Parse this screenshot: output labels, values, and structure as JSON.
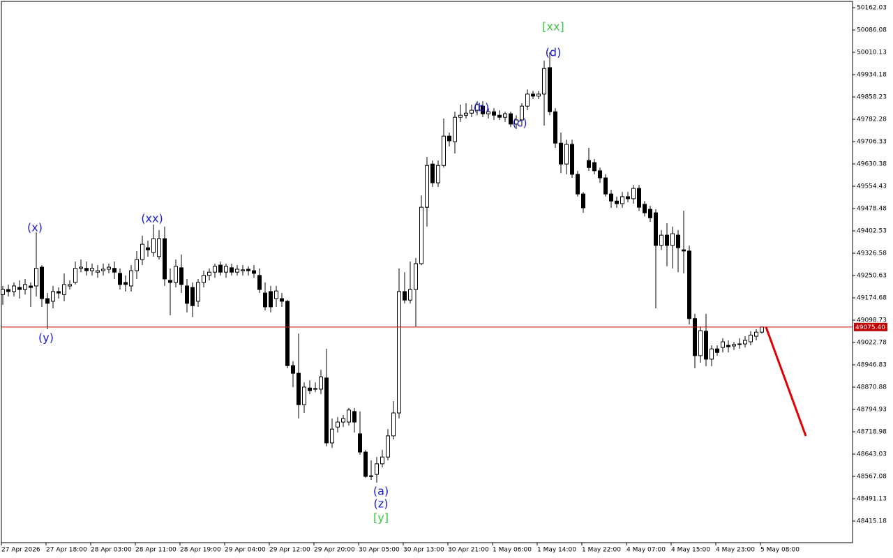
{
  "chart_data": {
    "type": "candlestick",
    "categories": [
      "27 Apr 2026",
      null,
      null,
      null,
      null,
      null,
      null,
      null,
      "27 Apr 18:00",
      null,
      null,
      null,
      null,
      null,
      null,
      null,
      "28 Apr 03:00",
      null,
      null,
      null,
      null,
      null,
      null,
      null,
      "28 Apr 11:00",
      null,
      null,
      null,
      null,
      null,
      null,
      null,
      "28 Apr 19:00",
      null,
      null,
      null,
      null,
      null,
      null,
      null,
      "29 Apr 04:00",
      null,
      null,
      null,
      null,
      null,
      null,
      null,
      "29 Apr 12:00",
      null,
      null,
      null,
      null,
      null,
      null,
      null,
      "29 Apr 20:00",
      null,
      null,
      null,
      null,
      null,
      null,
      null,
      "30 Apr 05:00",
      null,
      null,
      null,
      null,
      null,
      null,
      null,
      "30 Apr 13:00",
      null,
      null,
      null,
      null,
      null,
      null,
      null,
      "30 Apr 21:00",
      null,
      null,
      null,
      null,
      null,
      null,
      null,
      "1 May 06:00",
      null,
      null,
      null,
      null,
      null,
      null,
      null,
      "1 May 14:00",
      null,
      null,
      null,
      null,
      null,
      null,
      null,
      "1 May 22:00",
      null,
      null,
      null,
      null,
      null,
      null,
      null,
      "4 May 07:00",
      null,
      null,
      null,
      null,
      null,
      null,
      null,
      "4 May 15:00",
      null,
      null,
      null,
      null,
      null,
      null,
      null,
      "4 May 23:00",
      null,
      null,
      null,
      null,
      null,
      null,
      null,
      "5 May 08:00"
    ],
    "open": [
      49186,
      49203,
      49196,
      49210,
      49203,
      49215,
      49215,
      49279,
      49172,
      49163,
      49196,
      49186,
      49215,
      49227,
      49275,
      49275,
      49267,
      49262,
      49267,
      49272,
      49275,
      49258,
      49227,
      49215,
      49267,
      49305,
      49345,
      49329,
      49315,
      49376,
      49234,
      49227,
      49277,
      49215,
      49210,
      49163,
      49227,
      49251,
      49262,
      49286,
      49262,
      49277,
      49262,
      49267,
      49272,
      49267,
      49251,
      49191,
      49196,
      49172,
      49172,
      49163,
      48944,
      48918,
      48811,
      48868,
      48866,
      48864,
      48902,
      48681,
      48735,
      48752,
      48752,
      48788,
      48712,
      48650,
      48567,
      48574,
      48610,
      48633,
      48705,
      48783,
      49196,
      49167,
      49203,
      49291,
      49483,
      49630,
      49566,
      49625,
      49725,
      49706,
      49789,
      49796,
      49803,
      49813,
      49827,
      49801,
      49808,
      49796,
      49789,
      49801,
      49766,
      49780,
      49827,
      49868,
      49861,
      49868,
      49958,
      49808,
      49701,
      49630,
      49697,
      49595,
      49528,
      49642,
      49635,
      49607,
      49583,
      49528,
      49504,
      49495,
      49519,
      49512,
      49547,
      49493,
      49476,
      49464,
      49353,
      49388,
      49353,
      49388,
      49338,
      49334,
      49104,
      48978,
      49061,
      48966,
      49001,
      49006,
      49013,
      49011,
      49016,
      49018,
      49025,
      49044,
      49058
    ],
    "high": [
      49215,
      49220,
      49227,
      49234,
      49239,
      49227,
      49398,
      49286,
      49191,
      49215,
      49210,
      49258,
      49234,
      49298,
      49305,
      49298,
      49291,
      49286,
      49291,
      49291,
      49298,
      49275,
      49251,
      49286,
      49334,
      49386,
      49369,
      49424,
      49405,
      49417,
      49275,
      49305,
      49322,
      49239,
      49227,
      49239,
      49267,
      49275,
      49291,
      49298,
      49291,
      49291,
      49286,
      49286,
      49282,
      49286,
      49275,
      49227,
      49215,
      49215,
      49191,
      49167,
      48959,
      49053,
      48887,
      48894,
      48887,
      48930,
      49001,
      48764,
      48769,
      48776,
      48800,
      48800,
      48788,
      48657,
      48622,
      48633,
      48657,
      48728,
      48823,
      49275,
      49262,
      49298,
      49310,
      49523,
      49654,
      49642,
      49642,
      49785,
      49737,
      49808,
      49832,
      49837,
      49832,
      49844,
      49844,
      49820,
      49820,
      49813,
      49808,
      49808,
      49796,
      49837,
      49884,
      49879,
      49879,
      49982,
      50010,
      49820,
      49737,
      49713,
      49713,
      49607,
      49535,
      49685,
      49647,
      49618,
      49595,
      49542,
      49519,
      49535,
      49535,
      49559,
      49559,
      49504,
      49488,
      49476,
      49405,
      49429,
      49417,
      49405,
      49471,
      49353,
      49120,
      49077,
      49120,
      49013,
      49013,
      49037,
      49030,
      49025,
      49037,
      49044,
      49061,
      49068,
      49077
    ],
    "low": [
      49151,
      49179,
      49179,
      49172,
      49186,
      49144,
      49179,
      49144,
      49068,
      49139,
      49172,
      49163,
      49203,
      49220,
      49262,
      49251,
      49251,
      49243,
      49251,
      49258,
      49239,
      49203,
      49196,
      49196,
      49239,
      49286,
      49315,
      49315,
      49305,
      49215,
      49115,
      49210,
      49191,
      49125,
      49109,
      49144,
      49210,
      49234,
      49243,
      49251,
      49243,
      49251,
      49251,
      49251,
      49251,
      49243,
      49191,
      49132,
      49125,
      49144,
      49144,
      48935,
      48871,
      48764,
      48783,
      48847,
      48854,
      48847,
      48669,
      48664,
      48716,
      48735,
      48740,
      48716,
      48641,
      48562,
      48555,
      48546,
      48598,
      48622,
      48693,
      48764,
      49156,
      49156,
      49077,
      49286,
      49417,
      49552,
      49552,
      49618,
      49690,
      49666,
      49773,
      49785,
      49789,
      49796,
      49789,
      49785,
      49780,
      49780,
      49773,
      49756,
      49749,
      49761,
      49813,
      49851,
      49851,
      49761,
      49796,
      49685,
      49599,
      49595,
      49583,
      49519,
      49464,
      49607,
      49595,
      49566,
      49519,
      49481,
      49481,
      49481,
      49500,
      49495,
      49471,
      49452,
      49433,
      49139,
      49338,
      49282,
      49275,
      49262,
      49258,
      49084,
      48935,
      48954,
      48942,
      48942,
      48978,
      48989,
      48989,
      48997,
      49001,
      49006,
      49013,
      49030,
      49053
    ],
    "close": [
      49203,
      49196,
      49215,
      49203,
      49220,
      49210,
      49275,
      49172,
      49156,
      49196,
      49191,
      49220,
      49220,
      49275,
      49279,
      49267,
      49275,
      49267,
      49272,
      49279,
      49262,
      49220,
      49220,
      49267,
      49305,
      49357,
      49338,
      49376,
      49376,
      49239,
      49227,
      49282,
      49220,
      49156,
      49148,
      49227,
      49251,
      49262,
      49282,
      49262,
      49282,
      49262,
      49272,
      49270,
      49267,
      49258,
      49203,
      49144,
      49144,
      49198,
      49163,
      48944,
      48918,
      48811,
      48871,
      48859,
      48864,
      48906,
      48681,
      48728,
      48752,
      48764,
      48793,
      48752,
      48650,
      48567,
      48569,
      48610,
      48633,
      48705,
      48783,
      49196,
      49167,
      49203,
      49291,
      49483,
      49625,
      49566,
      49625,
      49725,
      49709,
      49789,
      49796,
      49803,
      49813,
      49832,
      49801,
      49808,
      49796,
      49789,
      49801,
      49766,
      49780,
      49827,
      49868,
      49861,
      49868,
      49955,
      49808,
      49701,
      49630,
      49697,
      49595,
      49528,
      49481,
      49618,
      49607,
      49583,
      49528,
      49504,
      49495,
      49519,
      49512,
      49547,
      49483,
      49464,
      49447,
      49353,
      49388,
      49353,
      49393,
      49345,
      49334,
      49104,
      48978,
      49063,
      48966,
      49001,
      48989,
      49025,
      49008,
      49016,
      49018,
      49030,
      49048,
      49058,
      49075.4
    ],
    "up_color": "#ffffff",
    "down_color": "#000000",
    "ylim": [
      48341.6,
      50183.4
    ],
    "yticks": [
      50162.03,
      50086.08,
      50010.13,
      49934.18,
      49858.23,
      49782.28,
      49706.33,
      49630.38,
      49554.43,
      49478.48,
      49402.53,
      49326.58,
      49250.63,
      49174.68,
      49098.73,
      49022.78,
      48946.83,
      48870.88,
      48794.93,
      48718.98,
      48643.03,
      48567.08,
      48491.13,
      48415.18
    ],
    "current_price": {
      "value": 49075.4,
      "label": "49075.40"
    },
    "current_price_color": "#c00000",
    "annotations": [
      {
        "text": "(x)",
        "color": "#1a1ad2"
      },
      {
        "text": "(y)",
        "color": "#1a1ad2"
      },
      {
        "text": "(xx)",
        "color": "#1a1ad2"
      },
      {
        "text": "(a)",
        "color": "#1a1ad2"
      },
      {
        "text": "(z)",
        "color": "#1a1ad2"
      },
      {
        "text": "[y]",
        "color": "#3cc43c"
      },
      {
        "text": "(b)",
        "color": "#1a1ad2"
      },
      {
        "text": "(c)",
        "color": "#1a1ad2"
      },
      {
        "text": "[xx]",
        "color": "#3cc43c"
      },
      {
        "text": "(d)",
        "color": "#1a1ad2"
      }
    ]
  }
}
